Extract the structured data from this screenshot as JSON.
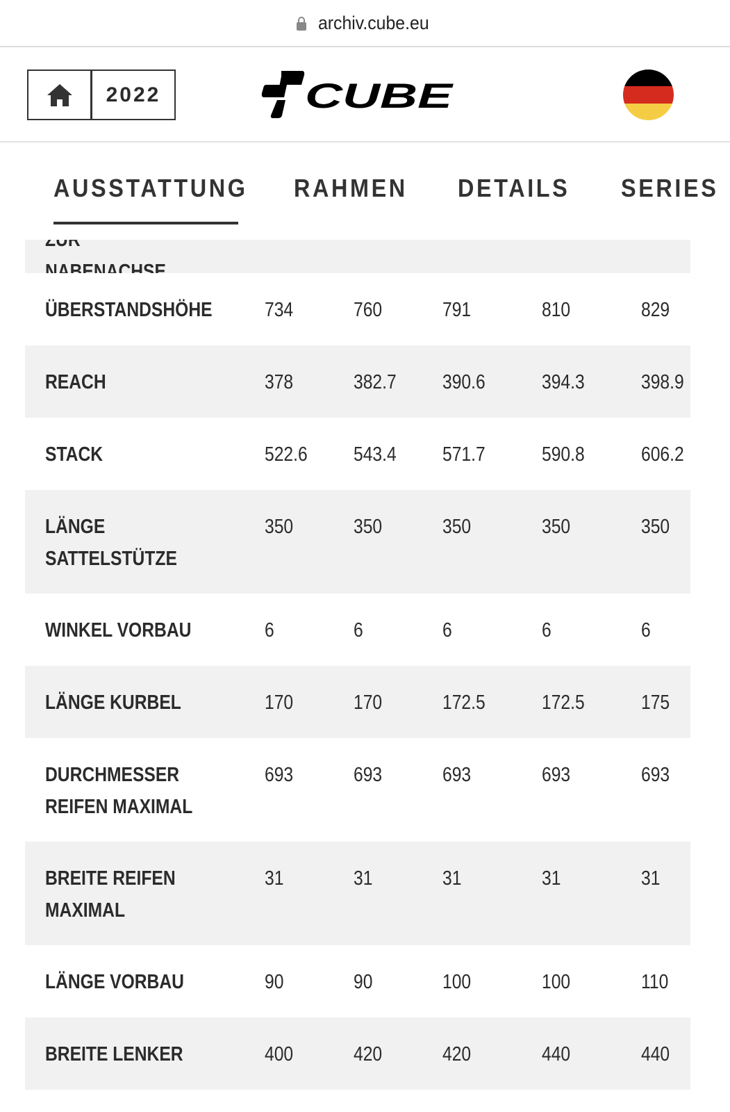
{
  "browser": {
    "url": "archiv.cube.eu"
  },
  "header": {
    "year": "2022",
    "brand": "CUBE",
    "colors": {
      "flag": [
        "#000000",
        "#dd0000",
        "#ffce00"
      ]
    }
  },
  "tabs": [
    {
      "label": "AUSSTATTUNG",
      "active": true
    },
    {
      "label": "RAHMEN"
    },
    {
      "label": "DETAILS"
    },
    {
      "label": "SERIES"
    }
  ],
  "table": {
    "partial_label": "ZUR NABENACHSE",
    "rows": [
      {
        "label": "ÜBERSTANDSHÖHE",
        "values": [
          "734",
          "760",
          "791",
          "810",
          "829"
        ]
      },
      {
        "label": "REACH",
        "values": [
          "378",
          "382.7",
          "390.6",
          "394.3",
          "398.9"
        ]
      },
      {
        "label": "STACK",
        "values": [
          "522.6",
          "543.4",
          "571.7",
          "590.8",
          "606.2"
        ]
      },
      {
        "label": "LÄNGE SATTELSTÜTZE",
        "values": [
          "350",
          "350",
          "350",
          "350",
          "350"
        ]
      },
      {
        "label": "WINKEL VORBAU",
        "values": [
          "6",
          "6",
          "6",
          "6",
          "6"
        ]
      },
      {
        "label": "LÄNGE KURBEL",
        "values": [
          "170",
          "170",
          "172.5",
          "172.5",
          "175"
        ]
      },
      {
        "label": "DURCHMESSER REIFEN MAXIMAL",
        "values": [
          "693",
          "693",
          "693",
          "693",
          "693"
        ]
      },
      {
        "label": "BREITE REIFEN MAXIMAL",
        "values": [
          "31",
          "31",
          "31",
          "31",
          "31"
        ]
      },
      {
        "label": "LÄNGE VORBAU",
        "values": [
          "90",
          "90",
          "100",
          "100",
          "110"
        ]
      },
      {
        "label": "BREITE LENKER",
        "values": [
          "400",
          "420",
          "420",
          "440",
          "440"
        ]
      }
    ]
  }
}
